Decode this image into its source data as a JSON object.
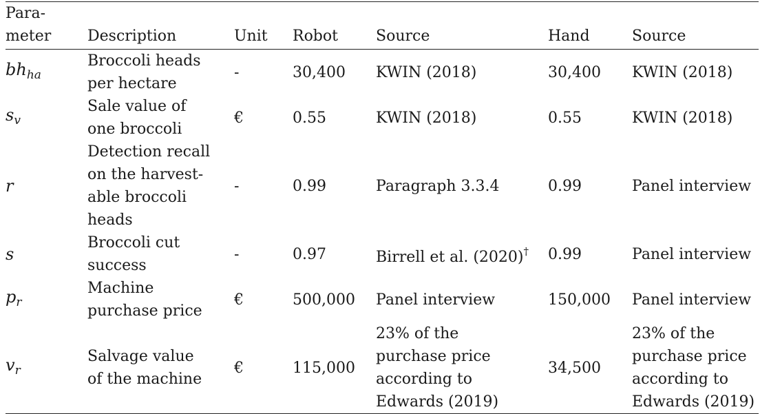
{
  "headers": {
    "parameter": "Para-\nmeter",
    "description": "Description",
    "unit": "Unit",
    "robot": "Robot",
    "source_robot": "Source",
    "hand": "Hand",
    "source_hand": "Source"
  },
  "rows": [
    {
      "sym_base": "bh",
      "sym_sub": "ha",
      "description": "Broccoli heads\nper hectare",
      "unit": "-",
      "robot": "30,400",
      "source_robot": "KWIN (2018)",
      "source_robot_mark": "",
      "hand": "30,400",
      "source_hand": "KWIN (2018)"
    },
    {
      "sym_base": "s",
      "sym_sub": "v",
      "description": "Sale value of\none broccoli",
      "unit": "€",
      "robot": "0.55",
      "source_robot": "KWIN (2018)",
      "source_robot_mark": "",
      "hand": "0.55",
      "source_hand": "KWIN (2018)"
    },
    {
      "sym_base": "r",
      "sym_sub": "",
      "description": "Detection recall\non the harvest-\nable broccoli\nheads",
      "unit": "-",
      "robot": "0.99",
      "source_robot": "Paragraph 3.3.4",
      "source_robot_mark": "",
      "hand": "0.99",
      "source_hand": "Panel interview"
    },
    {
      "sym_base": "s",
      "sym_sub": "",
      "description": "Broccoli cut\nsuccess",
      "unit": "-",
      "robot": "0.97",
      "source_robot": "Birrell et al. (2020)",
      "source_robot_mark": "†",
      "hand": "0.99",
      "source_hand": "Panel interview"
    },
    {
      "sym_base": "p",
      "sym_sub": "r",
      "description": "Machine\npurchase price",
      "unit": "€",
      "robot": "500,000",
      "source_robot": "Panel interview",
      "source_robot_mark": "",
      "hand": "150,000",
      "source_hand": "Panel interview"
    },
    {
      "sym_base": "v",
      "sym_sub": "r",
      "description": "Salvage value\nof the machine",
      "unit": "€",
      "robot": "115,000",
      "source_robot": "23% of the\npurchase price\naccording to\nEdwards (2019)",
      "source_robot_mark": "",
      "hand": "34,500",
      "source_hand": "23% of the\npurchase price\naccording to\nEdwards (2019)"
    }
  ]
}
